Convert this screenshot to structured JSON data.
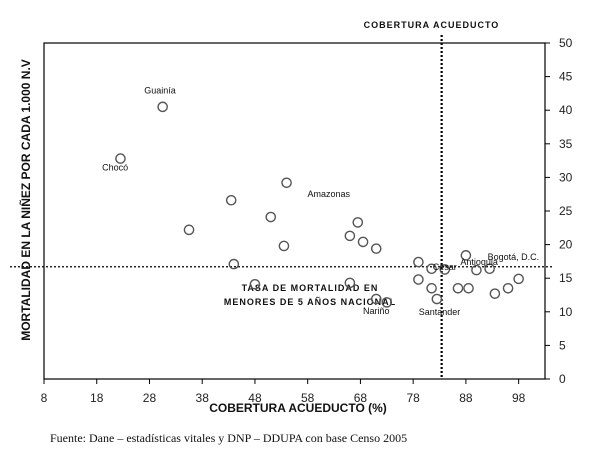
{
  "chart_data": {
    "type": "scatter",
    "xlabel": "COBERTURA ACUEDUCTO (%)",
    "ylabel": "MORTALIDAD EN LA NIÑEZ POR CADA 1.000 N.V",
    "xlim": [
      8,
      103
    ],
    "ylim": [
      0,
      50
    ],
    "x_ticks": [
      8,
      18,
      28,
      38,
      48,
      58,
      68,
      78,
      88,
      98
    ],
    "y_ticks": [
      0,
      5,
      10,
      15,
      20,
      25,
      30,
      35,
      40,
      45,
      50
    ],
    "y_axis_side": "right",
    "grid": false,
    "points": [
      {
        "x": 22.5,
        "y": 32.8
      },
      {
        "x": 30.5,
        "y": 40.5
      },
      {
        "x": 35.5,
        "y": 22.2
      },
      {
        "x": 43.5,
        "y": 26.6
      },
      {
        "x": 44.0,
        "y": 17.1
      },
      {
        "x": 48.0,
        "y": 14.1
      },
      {
        "x": 51.0,
        "y": 24.1
      },
      {
        "x": 53.5,
        "y": 19.8
      },
      {
        "x": 54.0,
        "y": 29.2
      },
      {
        "x": 66.0,
        "y": 21.3
      },
      {
        "x": 66.0,
        "y": 14.3
      },
      {
        "x": 67.5,
        "y": 23.3
      },
      {
        "x": 68.5,
        "y": 20.4
      },
      {
        "x": 71.0,
        "y": 19.4
      },
      {
        "x": 71.0,
        "y": 11.9
      },
      {
        "x": 73.0,
        "y": 11.4
      },
      {
        "x": 79.0,
        "y": 17.4
      },
      {
        "x": 79.0,
        "y": 14.8
      },
      {
        "x": 81.5,
        "y": 13.5
      },
      {
        "x": 81.5,
        "y": 16.4
      },
      {
        "x": 82.5,
        "y": 11.9
      },
      {
        "x": 84.0,
        "y": 16.3
      },
      {
        "x": 86.5,
        "y": 13.5
      },
      {
        "x": 88.0,
        "y": 18.4
      },
      {
        "x": 88.5,
        "y": 13.5
      },
      {
        "x": 90.0,
        "y": 16.2
      },
      {
        "x": 92.5,
        "y": 16.4
      },
      {
        "x": 93.5,
        "y": 12.7
      },
      {
        "x": 96.0,
        "y": 13.5
      },
      {
        "x": 98.0,
        "y": 14.9
      }
    ],
    "point_labels": [
      {
        "text": "Guainía",
        "x": 30.0,
        "y": 42.5
      },
      {
        "text": "Chocó",
        "x": 21.5,
        "y": 31.0
      },
      {
        "text": "Amazonas",
        "x": 62.0,
        "y": 27.1
      },
      {
        "text": "Antioquia",
        "x": 90.5,
        "y": 17.0
      },
      {
        "text": "Bogotá, D.C.",
        "x": 97.0,
        "y": 17.7
      },
      {
        "text": "Cesar",
        "x": 84.0,
        "y": 16.2
      },
      {
        "text": "Nariño",
        "x": 71.0,
        "y": 9.7
      },
      {
        "text": "Santander",
        "x": 83.0,
        "y": 9.5
      }
    ],
    "reference_lines": [
      {
        "orientation": "vertical",
        "x": 83.4,
        "label": "COBERTURA ACUEDUCTO"
      },
      {
        "orientation": "horizontal",
        "y": 16.7,
        "label_lines": [
          "TASA DE MORTALIDAD EN",
          "MENORES DE 5 AÑOS NACIONAL"
        ]
      }
    ]
  },
  "footer": {
    "source": "Fuente: Dane – estadísticas vitales y DNP – DDUPA con base Censo 2005"
  }
}
